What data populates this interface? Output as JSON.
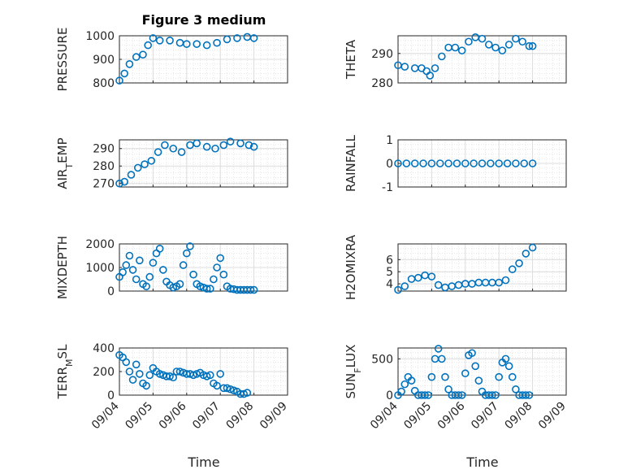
{
  "figure": {
    "title": "Figure 3 medium",
    "xlabel": "Time"
  },
  "chart_data": [
    {
      "type": "scatter",
      "title": "Figure 3 medium",
      "ylabel": "PRESSURE",
      "xlim": [
        "09/04",
        "09/08"
      ],
      "ylim": [
        800,
        1000
      ],
      "yticks": [
        "800",
        "900",
        "1000"
      ],
      "xticklabels": [],
      "grid": true,
      "marker": "circle",
      "color": "#0072BD",
      "series": [
        {
          "x": [
            0.0,
            0.15,
            0.3,
            0.5,
            0.7,
            0.85,
            1.0,
            1.2,
            1.5,
            1.8,
            2.0,
            2.3,
            2.6,
            2.9,
            3.2,
            3.5,
            3.8,
            4.0
          ],
          "y": [
            810,
            840,
            880,
            910,
            920,
            960,
            990,
            980,
            980,
            970,
            965,
            965,
            960,
            970,
            985,
            990,
            995,
            990
          ]
        }
      ]
    },
    {
      "type": "scatter",
      "ylabel": "THETA",
      "xlim": [
        "09/04",
        "09/08"
      ],
      "ylim": [
        280,
        296
      ],
      "yticks": [
        "280",
        "290"
      ],
      "xticklabels": [],
      "grid": true,
      "marker": "circle",
      "color": "#0072BD",
      "series": [
        {
          "x": [
            0.0,
            0.2,
            0.5,
            0.7,
            0.85,
            0.95,
            1.1,
            1.3,
            1.5,
            1.7,
            1.9,
            2.1,
            2.3,
            2.5,
            2.7,
            2.9,
            3.1,
            3.3,
            3.5,
            3.7,
            3.9,
            4.0
          ],
          "y": [
            286,
            285.5,
            285,
            285,
            284,
            282.5,
            285,
            289,
            292,
            292,
            291,
            294,
            295.5,
            295,
            293,
            292,
            291,
            293,
            295,
            294,
            292.5,
            292.5
          ]
        }
      ]
    },
    {
      "type": "scatter",
      "ylabel": "AIR_TEMP",
      "xlim": [
        "09/04",
        "09/08"
      ],
      "ylim": [
        268,
        295
      ],
      "yticks": [
        "270",
        "280",
        "290"
      ],
      "xticklabels": [],
      "grid": true,
      "marker": "circle",
      "color": "#0072BD",
      "series": [
        {
          "x": [
            0.0,
            0.15,
            0.35,
            0.55,
            0.75,
            0.95,
            1.15,
            1.35,
            1.6,
            1.85,
            2.1,
            2.3,
            2.6,
            2.85,
            3.1,
            3.3,
            3.6,
            3.85,
            4.0
          ],
          "y": [
            270,
            271,
            275,
            279,
            281,
            283,
            288,
            292,
            290,
            288,
            292,
            293,
            291,
            290,
            292,
            294,
            293,
            292,
            291
          ]
        }
      ]
    },
    {
      "type": "scatter",
      "ylabel": "RAINFALL",
      "xlim": [
        "09/04",
        "09/08"
      ],
      "ylim": [
        -1,
        1
      ],
      "yticks": [
        "-1",
        "0",
        "1"
      ],
      "xticklabels": [],
      "grid": true,
      "marker": "circle",
      "color": "#0072BD",
      "series": [
        {
          "x": [
            0.0,
            0.25,
            0.5,
            0.75,
            1.0,
            1.25,
            1.5,
            1.75,
            2.0,
            2.25,
            2.5,
            2.75,
            3.0,
            3.25,
            3.5,
            3.75,
            4.0
          ],
          "y": [
            0,
            0,
            0,
            0,
            0,
            0,
            0,
            0,
            0,
            0,
            0,
            0,
            0,
            0,
            0,
            0,
            0
          ]
        }
      ]
    },
    {
      "type": "scatter",
      "ylabel": "MIXDEPTH",
      "xlim": [
        "09/04",
        "09/08"
      ],
      "ylim": [
        0,
        2000
      ],
      "yticks": [
        "0",
        "1000",
        "2000"
      ],
      "xticklabels": [],
      "grid": true,
      "marker": "circle",
      "color": "#0072BD",
      "series": [
        {
          "x": [
            0.0,
            0.1,
            0.2,
            0.3,
            0.4,
            0.5,
            0.6,
            0.7,
            0.8,
            0.9,
            1.0,
            1.1,
            1.2,
            1.3,
            1.4,
            1.5,
            1.6,
            1.7,
            1.8,
            1.9,
            2.0,
            2.1,
            2.2,
            2.3,
            2.4,
            2.5,
            2.6,
            2.7,
            2.8,
            2.9,
            3.0,
            3.1,
            3.2,
            3.3,
            3.4,
            3.5,
            3.6,
            3.7,
            3.8,
            3.9,
            4.0
          ],
          "y": [
            600,
            800,
            1100,
            1500,
            900,
            500,
            1300,
            300,
            200,
            600,
            1200,
            1600,
            1800,
            900,
            400,
            250,
            150,
            200,
            300,
            1100,
            1600,
            1900,
            700,
            300,
            200,
            150,
            100,
            100,
            500,
            1000,
            1400,
            700,
            200,
            100,
            80,
            50,
            50,
            50,
            50,
            50,
            50
          ]
        }
      ]
    },
    {
      "type": "scatter",
      "ylabel": "H2OMIXRA",
      "xlim": [
        "09/04",
        "09/08"
      ],
      "ylim": [
        3.4,
        7.3
      ],
      "yticks": [
        "4",
        "5",
        "6"
      ],
      "xticklabels": [],
      "grid": true,
      "marker": "circle",
      "color": "#0072BD",
      "series": [
        {
          "x": [
            0.0,
            0.2,
            0.4,
            0.6,
            0.8,
            1.0,
            1.2,
            1.4,
            1.6,
            1.8,
            2.0,
            2.2,
            2.4,
            2.6,
            2.8,
            3.0,
            3.2,
            3.4,
            3.6,
            3.8,
            4.0
          ],
          "y": [
            3.5,
            3.8,
            4.4,
            4.5,
            4.7,
            4.6,
            3.9,
            3.7,
            3.8,
            3.9,
            4.0,
            4.0,
            4.1,
            4.1,
            4.1,
            4.1,
            4.3,
            5.2,
            5.7,
            6.5,
            7.0
          ]
        }
      ]
    },
    {
      "type": "scatter",
      "ylabel": "TERR_MSL",
      "xlim": [
        "09/04",
        "09/09"
      ],
      "ylim": [
        0,
        400
      ],
      "yticks": [
        "0",
        "200",
        "400"
      ],
      "xticklabels": [
        "09/04",
        "09/05",
        "09/06",
        "09/07",
        "09/08",
        "09/09"
      ],
      "grid": true,
      "marker": "circle",
      "color": "#0072BD",
      "series": [
        {
          "x": [
            0.0,
            0.1,
            0.2,
            0.3,
            0.4,
            0.5,
            0.6,
            0.7,
            0.8,
            0.9,
            1.0,
            1.1,
            1.2,
            1.3,
            1.4,
            1.5,
            1.6,
            1.7,
            1.8,
            1.9,
            2.0,
            2.1,
            2.2,
            2.3,
            2.4,
            2.5,
            2.6,
            2.7,
            2.8,
            2.9,
            3.0,
            3.1,
            3.2,
            3.3,
            3.4,
            3.5,
            3.6,
            3.7,
            3.8
          ],
          "y": [
            340,
            320,
            280,
            200,
            130,
            260,
            180,
            100,
            80,
            170,
            230,
            200,
            180,
            170,
            160,
            160,
            150,
            200,
            200,
            190,
            180,
            180,
            170,
            180,
            190,
            170,
            160,
            170,
            100,
            80,
            180,
            60,
            60,
            50,
            40,
            30,
            10,
            10,
            20
          ]
        }
      ]
    },
    {
      "type": "scatter",
      "ylabel": "SUN_FLUX",
      "xlim": [
        "09/04",
        "09/09"
      ],
      "ylim": [
        0,
        650
      ],
      "yticks": [
        "0",
        "500"
      ],
      "xticklabels": [
        "09/04",
        "09/05",
        "09/06",
        "09/07",
        "09/08",
        "09/09"
      ],
      "grid": true,
      "marker": "circle",
      "color": "#0072BD",
      "series": [
        {
          "x": [
            0.0,
            0.1,
            0.2,
            0.3,
            0.4,
            0.5,
            0.6,
            0.7,
            0.8,
            0.9,
            1.0,
            1.1,
            1.2,
            1.3,
            1.4,
            1.5,
            1.6,
            1.7,
            1.8,
            1.9,
            2.0,
            2.1,
            2.2,
            2.3,
            2.4,
            2.5,
            2.6,
            2.7,
            2.8,
            2.9,
            3.0,
            3.1,
            3.2,
            3.3,
            3.4,
            3.5,
            3.6,
            3.7,
            3.8,
            3.9
          ],
          "y": [
            0,
            50,
            150,
            250,
            200,
            60,
            0,
            0,
            0,
            0,
            250,
            500,
            640,
            500,
            250,
            80,
            0,
            0,
            0,
            0,
            300,
            550,
            580,
            400,
            200,
            50,
            0,
            0,
            0,
            0,
            250,
            450,
            500,
            400,
            250,
            80,
            0,
            0,
            0,
            0
          ]
        }
      ]
    }
  ]
}
